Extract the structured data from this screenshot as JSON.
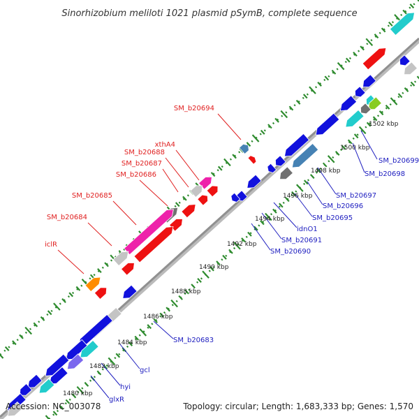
{
  "map": {
    "title": "Sinorhizobium meliloti 1021 plasmid pSymB, complete sequence",
    "accession": "Accession: NC_003078",
    "summary": "Topology: circular; Length: 1,683,333 bp; Genes: 1,570",
    "colors": {
      "backbone": "#909090",
      "tick": "#2e8b2e",
      "forward_label": "#e02020",
      "reverse_label": "#2020c0",
      "red": "#ee1111",
      "blue": "#1111dd",
      "magenta": "#ee22aa",
      "gray": "#c4c4c4",
      "darkgray": "#707070",
      "cyan": "#22cccc",
      "orange": "#ff8c00",
      "steelblue": "#4682b4",
      "slateblue": "#7b68ee",
      "lime": "#88cc22"
    },
    "ticks": [
      {
        "label": "1480 kbp"
      },
      {
        "label": "1482 kbp"
      },
      {
        "label": "1484 kbp"
      },
      {
        "label": "1486 kbp"
      },
      {
        "label": "1488 kbp"
      },
      {
        "label": "1490 kbp"
      },
      {
        "label": "1492 kbp"
      },
      {
        "label": "1494 kbp"
      },
      {
        "label": "1496 kbp"
      },
      {
        "label": "1498 kbp"
      },
      {
        "label": "1500 kbp"
      },
      {
        "label": "1502 kbp"
      }
    ],
    "gene_labels": [
      {
        "name": "SM_b20694",
        "strand": "forward"
      },
      {
        "name": "xthA4",
        "strand": "forward"
      },
      {
        "name": "SM_b20688",
        "strand": "forward"
      },
      {
        "name": "SM_b20687",
        "strand": "forward"
      },
      {
        "name": "SM_b20686",
        "strand": "forward"
      },
      {
        "name": "SM_b20685",
        "strand": "forward"
      },
      {
        "name": "SM_b20684",
        "strand": "forward"
      },
      {
        "name": "iclR",
        "strand": "forward"
      },
      {
        "name": "SM_b20699",
        "strand": "reverse"
      },
      {
        "name": "SM_b20698",
        "strand": "reverse"
      },
      {
        "name": "SM_b20697",
        "strand": "reverse"
      },
      {
        "name": "SM_b20696",
        "strand": "reverse"
      },
      {
        "name": "SM_b20695",
        "strand": "reverse"
      },
      {
        "name": "idnO1",
        "strand": "reverse"
      },
      {
        "name": "SM_b20691",
        "strand": "reverse"
      },
      {
        "name": "SM_b20690",
        "strand": "reverse"
      },
      {
        "name": "SM_b20683",
        "strand": "reverse"
      },
      {
        "name": "gcl",
        "strand": "reverse"
      },
      {
        "name": "hyi",
        "strand": "reverse"
      },
      {
        "name": "glxR",
        "strand": "reverse"
      }
    ]
  }
}
